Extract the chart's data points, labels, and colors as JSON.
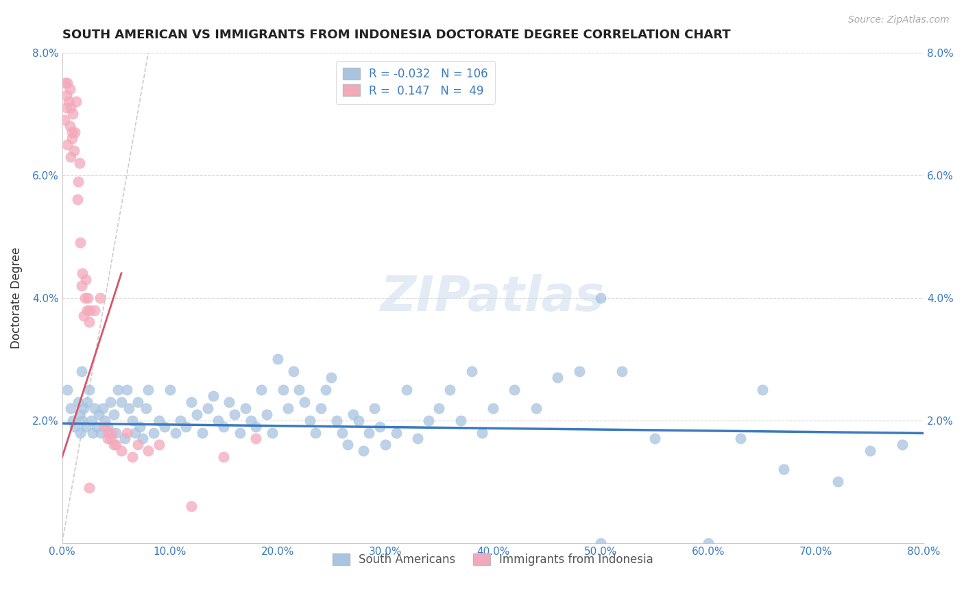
{
  "title": "SOUTH AMERICAN VS IMMIGRANTS FROM INDONESIA DOCTORATE DEGREE CORRELATION CHART",
  "source": "Source: ZipAtlas.com",
  "ylabel": "Doctorate Degree",
  "xlim": [
    0.0,
    0.8
  ],
  "ylim": [
    0.0,
    0.08
  ],
  "xticks": [
    0.0,
    0.1,
    0.2,
    0.3,
    0.4,
    0.5,
    0.6,
    0.7,
    0.8
  ],
  "yticks": [
    0.0,
    0.02,
    0.04,
    0.06,
    0.08
  ],
  "xticklabels": [
    "0.0%",
    "10.0%",
    "20.0%",
    "30.0%",
    "40.0%",
    "50.0%",
    "60.0%",
    "70.0%",
    "80.0%"
  ],
  "yticklabels": [
    "",
    "2.0%",
    "4.0%",
    "6.0%",
    "8.0%"
  ],
  "blue_R": "-0.032",
  "blue_N": "106",
  "pink_R": "0.147",
  "pink_N": "49",
  "blue_color": "#a8c4e0",
  "pink_color": "#f4a8bb",
  "blue_line_color": "#3a7abf",
  "pink_line_color": "#d9536a",
  "dashed_line_color": "#c0c0c0",
  "watermark": "ZIPatlas",
  "legend_blue_label": "South Americans",
  "legend_pink_label": "Immigrants from Indonesia",
  "blue_x": [
    0.005,
    0.008,
    0.01,
    0.012,
    0.015,
    0.016,
    0.017,
    0.018,
    0.019,
    0.02,
    0.022,
    0.023,
    0.025,
    0.027,
    0.028,
    0.03,
    0.032,
    0.034,
    0.036,
    0.038,
    0.04,
    0.042,
    0.045,
    0.048,
    0.05,
    0.052,
    0.055,
    0.058,
    0.06,
    0.062,
    0.065,
    0.068,
    0.07,
    0.072,
    0.075,
    0.078,
    0.08,
    0.085,
    0.09,
    0.095,
    0.1,
    0.105,
    0.11,
    0.115,
    0.12,
    0.125,
    0.13,
    0.135,
    0.14,
    0.145,
    0.15,
    0.155,
    0.16,
    0.165,
    0.17,
    0.175,
    0.18,
    0.185,
    0.19,
    0.195,
    0.2,
    0.205,
    0.21,
    0.215,
    0.22,
    0.225,
    0.23,
    0.235,
    0.24,
    0.245,
    0.25,
    0.255,
    0.26,
    0.265,
    0.27,
    0.275,
    0.28,
    0.285,
    0.29,
    0.295,
    0.3,
    0.31,
    0.32,
    0.33,
    0.34,
    0.35,
    0.36,
    0.37,
    0.38,
    0.39,
    0.4,
    0.42,
    0.44,
    0.46,
    0.48,
    0.5,
    0.52,
    0.55,
    0.6,
    0.63,
    0.65,
    0.67,
    0.72,
    0.75,
    0.78,
    0.5
  ],
  "blue_y": [
    0.025,
    0.022,
    0.02,
    0.019,
    0.023,
    0.021,
    0.018,
    0.028,
    0.02,
    0.022,
    0.019,
    0.023,
    0.025,
    0.02,
    0.018,
    0.022,
    0.019,
    0.021,
    0.018,
    0.022,
    0.02,
    0.019,
    0.023,
    0.021,
    0.018,
    0.025,
    0.023,
    0.017,
    0.025,
    0.022,
    0.02,
    0.018,
    0.023,
    0.019,
    0.017,
    0.022,
    0.025,
    0.018,
    0.02,
    0.019,
    0.025,
    0.018,
    0.02,
    0.019,
    0.023,
    0.021,
    0.018,
    0.022,
    0.024,
    0.02,
    0.019,
    0.023,
    0.021,
    0.018,
    0.022,
    0.02,
    0.019,
    0.025,
    0.021,
    0.018,
    0.03,
    0.025,
    0.022,
    0.028,
    0.025,
    0.023,
    0.02,
    0.018,
    0.022,
    0.025,
    0.027,
    0.02,
    0.018,
    0.016,
    0.021,
    0.02,
    0.015,
    0.018,
    0.022,
    0.019,
    0.016,
    0.018,
    0.025,
    0.017,
    0.02,
    0.022,
    0.025,
    0.02,
    0.028,
    0.018,
    0.022,
    0.025,
    0.022,
    0.027,
    0.028,
    0.04,
    0.028,
    0.017,
    0.0,
    0.017,
    0.025,
    0.012,
    0.01,
    0.015,
    0.016,
    0.0
  ],
  "pink_x": [
    0.002,
    0.003,
    0.004,
    0.004,
    0.005,
    0.005,
    0.006,
    0.007,
    0.007,
    0.008,
    0.008,
    0.009,
    0.009,
    0.01,
    0.011,
    0.012,
    0.013,
    0.014,
    0.015,
    0.016,
    0.017,
    0.018,
    0.019,
    0.02,
    0.021,
    0.022,
    0.023,
    0.024,
    0.025,
    0.026,
    0.03,
    0.035,
    0.04,
    0.042,
    0.043,
    0.045,
    0.046,
    0.048,
    0.05,
    0.055,
    0.06,
    0.065,
    0.07,
    0.08,
    0.09,
    0.12,
    0.15,
    0.18,
    0.025
  ],
  "pink_y": [
    0.069,
    0.075,
    0.071,
    0.073,
    0.065,
    0.075,
    0.072,
    0.068,
    0.074,
    0.063,
    0.071,
    0.066,
    0.067,
    0.07,
    0.064,
    0.067,
    0.072,
    0.056,
    0.059,
    0.062,
    0.049,
    0.042,
    0.044,
    0.037,
    0.04,
    0.043,
    0.038,
    0.04,
    0.036,
    0.038,
    0.038,
    0.04,
    0.019,
    0.017,
    0.018,
    0.017,
    0.018,
    0.016,
    0.016,
    0.015,
    0.018,
    0.014,
    0.016,
    0.015,
    0.016,
    0.006,
    0.014,
    0.017,
    0.009
  ],
  "blue_line_x": [
    0.0,
    0.8
  ],
  "blue_line_y": [
    0.0195,
    0.0179
  ],
  "pink_line_x": [
    0.0,
    0.055
  ],
  "pink_line_y": [
    0.014,
    0.044
  ],
  "dash_line_x": [
    0.0,
    0.08
  ],
  "dash_line_y": [
    0.0,
    0.08
  ]
}
